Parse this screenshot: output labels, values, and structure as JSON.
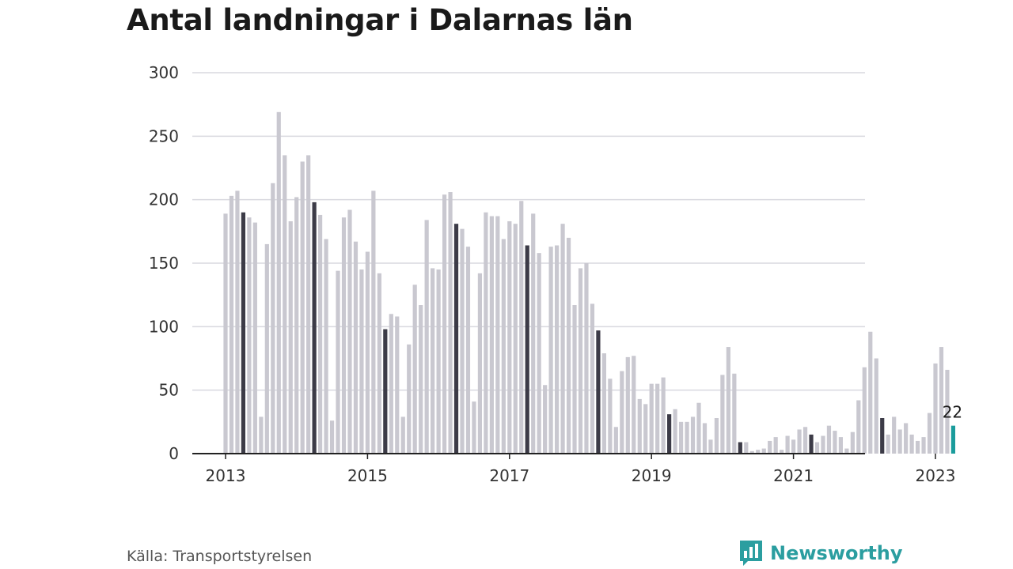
{
  "title": "Antal landningar i Dalarnas län",
  "source": "Källa: Transportstyrelsen",
  "brand": {
    "name": "Newsworthy",
    "icon": "newsworthy-logo-icon"
  },
  "colors": {
    "bar": "#c9c8d0",
    "highlight": "#3c3b47",
    "latest": "#1a9c9c",
    "brand": "#2b9ea0",
    "grid": "#d9d9df",
    "axis": "#222222"
  },
  "chart_data": {
    "type": "bar",
    "title": "Antal landningar i Dalarnas län",
    "xlabel": "",
    "ylabel": "",
    "ylim": [
      0,
      300
    ],
    "yticks": [
      0,
      50,
      100,
      150,
      200,
      250,
      300
    ],
    "xticks": [
      {
        "label": "2013",
        "year": 2013
      },
      {
        "label": "2015",
        "year": 2015
      },
      {
        "label": "2017",
        "year": 2017
      },
      {
        "label": "2019",
        "year": 2019
      },
      {
        "label": "2021",
        "year": 2021
      },
      {
        "label": "2023",
        "year": 2023
      }
    ],
    "start": "2013-01",
    "frequency": "monthly",
    "highlight_month": "April",
    "grid": true,
    "values": [
      189,
      203,
      207,
      190,
      186,
      182,
      29,
      165,
      213,
      269,
      235,
      183,
      202,
      230,
      235,
      198,
      188,
      169,
      26,
      144,
      186,
      192,
      167,
      145,
      159,
      207,
      142,
      98,
      110,
      108,
      29,
      86,
      133,
      117,
      184,
      146,
      145,
      204,
      206,
      181,
      177,
      163,
      41,
      142,
      190,
      187,
      187,
      169,
      183,
      181,
      199,
      164,
      189,
      158,
      54,
      163,
      164,
      181,
      170,
      117,
      146,
      150,
      118,
      97,
      79,
      59,
      21,
      65,
      76,
      77,
      43,
      39,
      55,
      55,
      60,
      31,
      35,
      25,
      25,
      29,
      40,
      24,
      11,
      28,
      62,
      84,
      63,
      9,
      9,
      2,
      3,
      4,
      10,
      13,
      3,
      14,
      11,
      19,
      21,
      15,
      9,
      14,
      22,
      18,
      13,
      4,
      17,
      42,
      68,
      96,
      75,
      28,
      15,
      29,
      19,
      24,
      15,
      10,
      13,
      32,
      71,
      84,
      66,
      22
    ],
    "last_value_label": "22"
  }
}
